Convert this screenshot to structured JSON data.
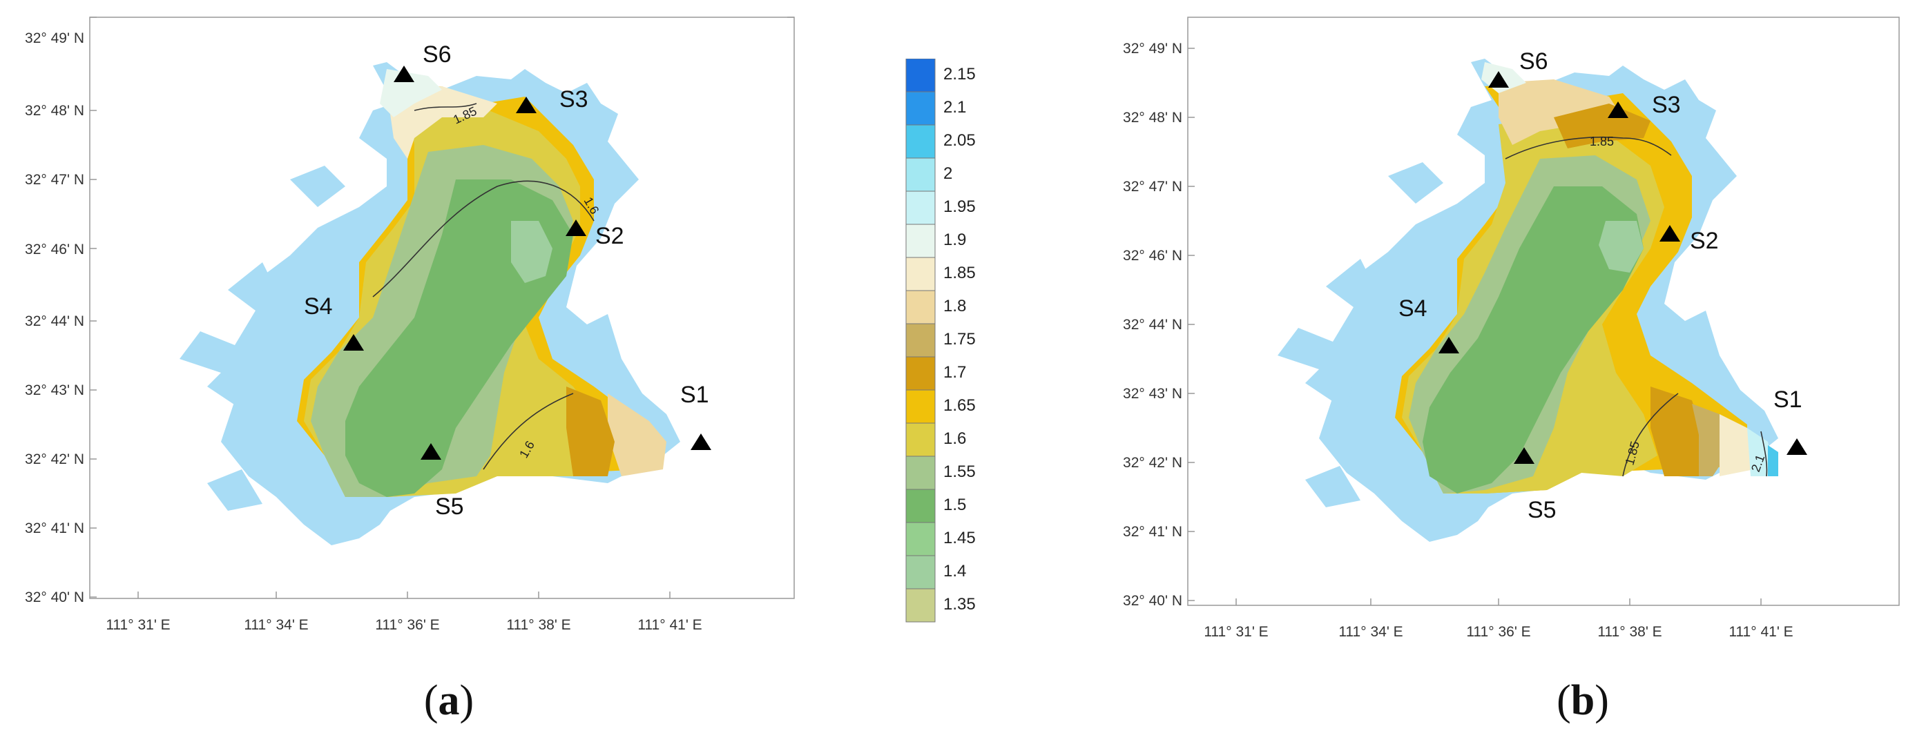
{
  "lat_labels": [
    "32° 49' N",
    "32° 48' N",
    "32° 47' N",
    "32° 46' N",
    "32° 44' N",
    "32° 43' N",
    "32° 42' N",
    "32° 41' N",
    "32° 40' N"
  ],
  "lon_labels": [
    "111° 31' E",
    "111° 34' E",
    "111° 36' E",
    "111° 38' E",
    "111° 41' E"
  ],
  "sites": [
    "S1",
    "S2",
    "S3",
    "S4",
    "S5",
    "S6"
  ],
  "panel_a": {
    "caption_open": "(",
    "caption_letter": "a",
    "caption_close": ")",
    "isolines": [
      "1.85",
      "1.6",
      "1.6"
    ]
  },
  "panel_b": {
    "caption_open": "(",
    "caption_letter": "b",
    "caption_close": ")",
    "isolines": [
      "1.85",
      "1.85",
      "2.1"
    ]
  },
  "legend": {
    "values": [
      "2.15",
      "2.1",
      "2.05",
      "2",
      "1.95",
      "1.9",
      "1.85",
      "1.8",
      "1.75",
      "1.7",
      "1.65",
      "1.6",
      "1.55",
      "1.5",
      "1.45",
      "1.4",
      "1.35"
    ],
    "colors": [
      "#1a6fe0",
      "#2a96ea",
      "#4bc8ec",
      "#a3e8f2",
      "#c8f2f5",
      "#e8f6ee",
      "#f6eccb",
      "#efd8a0",
      "#c9b060",
      "#d49d12",
      "#f0c10a",
      "#ddce44",
      "#a4c78e",
      "#76b86a",
      "#95cf8e",
      "#9fcf9f",
      "#c8d08c"
    ]
  },
  "colors": {
    "water": "#a8dcf5",
    "frame": "#999999",
    "marker": "#000000"
  }
}
